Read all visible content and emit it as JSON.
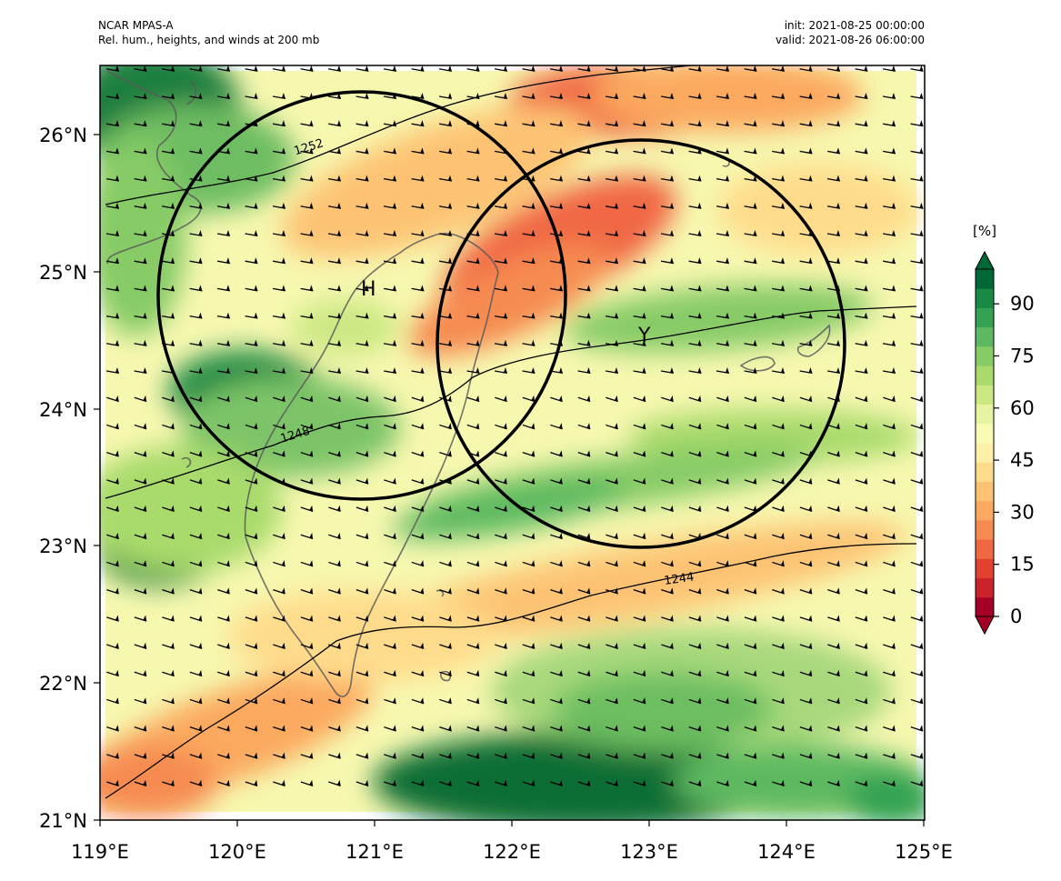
{
  "header": {
    "model": "NCAR MPAS-A",
    "field": "Rel. hum., heights, and winds at 200 mb",
    "init": "init: 2021-08-25 00:00:00",
    "valid": "valid: 2021-08-26 06:00:00"
  },
  "map": {
    "lon_range": [
      119,
      125
    ],
    "lat_range": [
      21,
      26.5
    ],
    "x_ticks": [
      "119°E",
      "120°E",
      "121°E",
      "122°E",
      "123°E",
      "124°E",
      "125°E"
    ],
    "y_ticks": [
      "21°N",
      "22°N",
      "23°N",
      "24°N",
      "25°N",
      "26°N"
    ],
    "x_tick_values": [
      119,
      120,
      121,
      122,
      123,
      124,
      125
    ],
    "y_tick_values": [
      21,
      22,
      23,
      24,
      25,
      26
    ],
    "height_contours": [
      {
        "label": "1252",
        "value": 1252
      },
      {
        "label": "1248",
        "value": 1248
      },
      {
        "label": "1244",
        "value": 1244
      }
    ],
    "markers": [
      {
        "label": "H",
        "lon": 120.93,
        "lat": 24.85,
        "circle_radius_deg_lat": 1.35
      },
      {
        "label": "Y",
        "lon": 122.95,
        "lat": 24.45,
        "circle_radius_deg_lat": 1.35
      }
    ]
  },
  "colorbar": {
    "unit": "[%]",
    "ticks": [
      "0",
      "15",
      "30",
      "45",
      "60",
      "75",
      "90"
    ],
    "tick_values": [
      0,
      15,
      30,
      45,
      60,
      75,
      90
    ],
    "range": [
      0,
      100
    ],
    "colors": [
      "#a50026",
      "#c9222a",
      "#e0422f",
      "#f06744",
      "#f68b51",
      "#fba95f",
      "#fdc373",
      "#fedb8b",
      "#fff0a9",
      "#f9fbb4",
      "#e6f4a2",
      "#cbe883",
      "#a9da6c",
      "#86cb66",
      "#5db961",
      "#33a252",
      "#198a44",
      "#006837"
    ]
  }
}
